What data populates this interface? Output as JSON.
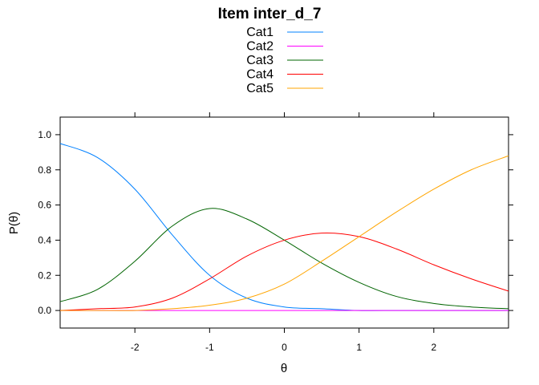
{
  "chart_data": {
    "type": "line",
    "title": "Item inter_d_7",
    "xlabel": "θ",
    "ylabel": "P(θ)",
    "xlim": [
      -3,
      3
    ],
    "ylim": [
      -0.1,
      1.1
    ],
    "x_ticks": [
      -2,
      -1,
      0,
      1,
      2
    ],
    "y_ticks": [
      0.0,
      0.2,
      0.4,
      0.6,
      0.8,
      1.0
    ],
    "x_tick_labels": [
      "-2",
      "-1",
      "0",
      "1",
      "2"
    ],
    "y_tick_labels": [
      "0.0",
      "0.2",
      "0.4",
      "0.6",
      "0.8",
      "1.0"
    ],
    "grid": false,
    "legend_position": "top",
    "x": [
      -3.0,
      -2.5,
      -2.0,
      -1.5,
      -1.0,
      -0.5,
      0.0,
      0.5,
      1.0,
      1.5,
      2.0,
      2.5,
      3.0
    ],
    "series": [
      {
        "name": "Cat1",
        "color": "#0080ff",
        "values": [
          0.95,
          0.87,
          0.69,
          0.43,
          0.2,
          0.07,
          0.02,
          0.01,
          0.0,
          0.0,
          0.0,
          0.0,
          0.0
        ]
      },
      {
        "name": "Cat2",
        "color": "#ff00ff",
        "values": [
          0.0,
          0.0,
          0.0,
          0.0,
          0.0,
          0.0,
          0.0,
          0.0,
          0.0,
          0.0,
          0.0,
          0.0,
          0.0
        ]
      },
      {
        "name": "Cat3",
        "color": "#006400",
        "values": [
          0.05,
          0.12,
          0.28,
          0.48,
          0.58,
          0.52,
          0.4,
          0.27,
          0.16,
          0.08,
          0.04,
          0.02,
          0.01
        ]
      },
      {
        "name": "Cat4",
        "color": "#ff0000",
        "values": [
          0.0,
          0.01,
          0.02,
          0.07,
          0.18,
          0.31,
          0.4,
          0.44,
          0.42,
          0.35,
          0.26,
          0.18,
          0.11
        ]
      },
      {
        "name": "Cat5",
        "color": "#ffa500",
        "values": [
          0.0,
          0.0,
          0.0,
          0.01,
          0.03,
          0.07,
          0.15,
          0.28,
          0.42,
          0.56,
          0.69,
          0.8,
          0.88
        ]
      }
    ]
  }
}
